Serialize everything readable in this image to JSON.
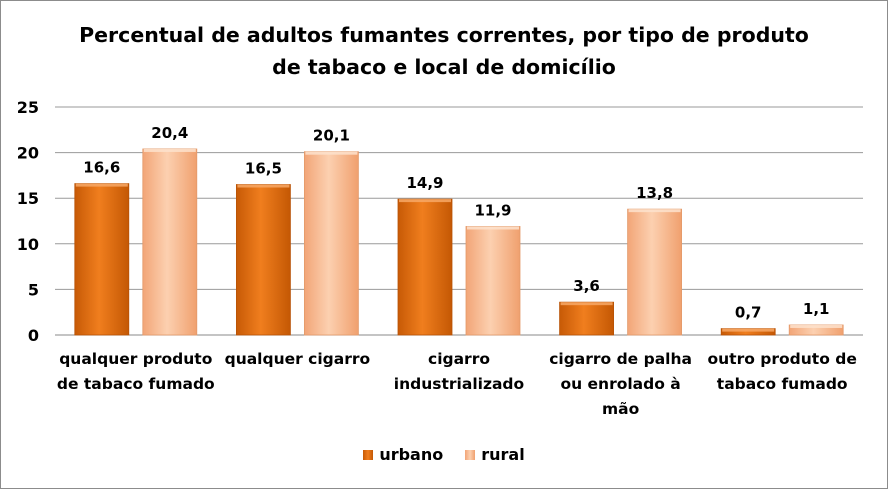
{
  "chart_data": {
    "type": "bar",
    "title_lines": [
      "Percentual de adultos fumantes correntes, por tipo de produto",
      "de tabaco e local de domicílio"
    ],
    "categories": [
      [
        "qualquer produto",
        "de tabaco fumado"
      ],
      [
        "qualquer cigarro"
      ],
      [
        "cigarro",
        "industrializado"
      ],
      [
        "cigarro de palha",
        "ou enrolado à",
        "mão"
      ],
      [
        "outro produto de",
        "tabaco fumado"
      ]
    ],
    "series": [
      {
        "name": "urbano",
        "color": "#E46C0A",
        "values": [
          16.6,
          16.5,
          14.9,
          3.6,
          0.7
        ],
        "labels": [
          "16,6",
          "16,5",
          "14,9",
          "3,6",
          "0,7"
        ]
      },
      {
        "name": "rural",
        "color": "#F9B589",
        "values": [
          20.4,
          20.1,
          11.9,
          13.8,
          1.1
        ],
        "labels": [
          "20,4",
          "20,1",
          "11,9",
          "13,8",
          "1,1"
        ]
      }
    ],
    "ylim": [
      0,
      25
    ],
    "yticks": [
      0,
      5,
      10,
      15,
      20,
      25
    ],
    "grid": true,
    "legend_position": "bottom"
  }
}
